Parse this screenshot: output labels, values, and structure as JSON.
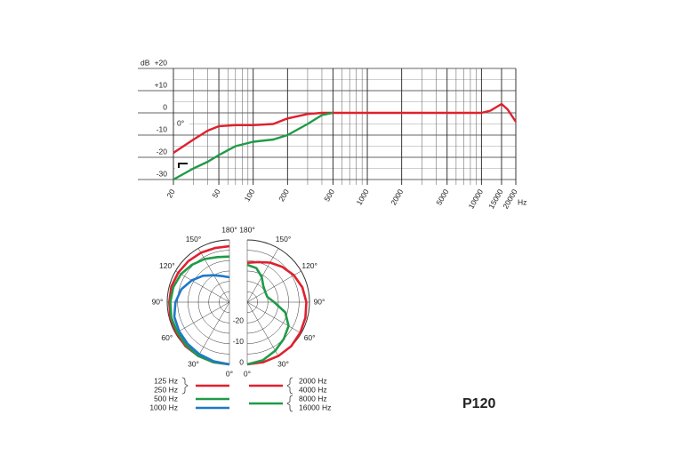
{
  "chart_data": [
    {
      "type": "line",
      "y_label": "dB",
      "x_label": "Hz",
      "annotation": "0°",
      "log_x": true,
      "grid": true,
      "x": [
        20,
        30,
        40,
        50,
        70,
        100,
        150,
        200,
        300,
        400,
        500,
        1000,
        2000,
        5000,
        10000,
        12000,
        15000,
        17000,
        20000
      ],
      "series": [
        {
          "color": "#e0202e",
          "values": [
            -18,
            -12,
            -8,
            -6,
            -5.5,
            -5.5,
            -5,
            -2.5,
            -0.5,
            0,
            0,
            0,
            0,
            0,
            0,
            1,
            4,
            1.5,
            -4
          ]
        },
        {
          "color": "#1f9a48",
          "values": [
            -30,
            -25,
            -22,
            -19,
            -15,
            -13,
            -12,
            -10,
            -5,
            -1,
            0,
            null,
            null,
            null,
            null,
            null,
            null,
            null,
            null
          ]
        }
      ],
      "xlim": [
        20,
        20000
      ],
      "ylim": [
        -30,
        20
      ],
      "xticks": [
        20,
        50,
        100,
        200,
        500,
        1000,
        2000,
        5000,
        10000,
        15000,
        20000
      ],
      "minor_xticks": [
        30,
        40,
        60,
        70,
        80,
        90,
        300,
        400,
        600,
        700,
        800,
        900,
        3000,
        4000,
        6000,
        7000,
        8000,
        9000
      ],
      "yticks": [
        {
          "value": 20,
          "label": "+20"
        },
        {
          "value": 10,
          "label": "+10"
        },
        0,
        -10,
        -20,
        -30
      ]
    },
    {
      "type": "polar",
      "theta": [
        0,
        15,
        30,
        45,
        60,
        75,
        90,
        105,
        120,
        135,
        150,
        165,
        180
      ],
      "rlim": [
        -30,
        0
      ],
      "rticks": [
        -20,
        -10,
        0
      ],
      "thetaticks": [
        {
          "value": 180,
          "label": "180°"
        },
        {
          "value": 150,
          "label": "150°"
        },
        {
          "value": 120,
          "label": "120°"
        },
        {
          "value": 90,
          "label": "90°"
        },
        {
          "value": 60,
          "label": "60°"
        },
        {
          "value": 30,
          "label": "30°"
        },
        {
          "value": 0,
          "label": "0°"
        }
      ],
      "series": [
        {
          "side": "left",
          "names": [
            "125 Hz",
            "250 Hz"
          ],
          "color": "#e0202e",
          "values": [
            0,
            0,
            0,
            0,
            -0.5,
            -0.5,
            -1,
            -1,
            -1.5,
            -2,
            -2.5,
            -3,
            -3
          ]
        },
        {
          "side": "left",
          "names": [
            "500 Hz"
          ],
          "color": "#1f9a48",
          "values": [
            0,
            0,
            0,
            -0.5,
            -1,
            -1,
            -1.5,
            -2,
            -3,
            -4.5,
            -6,
            -7.5,
            -8
          ]
        },
        {
          "side": "left",
          "names": [
            "1000 Hz"
          ],
          "color": "#1f78c8",
          "values": [
            0,
            -0.5,
            -1,
            -1.5,
            -2,
            -2.5,
            -4,
            -6,
            -9,
            -12,
            -15,
            -17,
            -18
          ]
        },
        {
          "side": "right",
          "names": [
            "2000 Hz",
            "4000 Hz"
          ],
          "color": "#e0202e",
          "values": [
            0,
            0,
            0,
            0,
            -0.5,
            -1,
            -1.5,
            -2.5,
            -4,
            -6,
            -8,
            -10,
            -11
          ]
        },
        {
          "side": "right",
          "names": [
            "8000 Hz",
            "16000 Hz"
          ],
          "color": "#1f9a48",
          "values": [
            0,
            -1,
            -3,
            -5,
            -7,
            -11,
            -17,
            -20,
            -20,
            -19,
            -16,
            -13,
            -12
          ]
        }
      ]
    }
  ],
  "model": "P120"
}
